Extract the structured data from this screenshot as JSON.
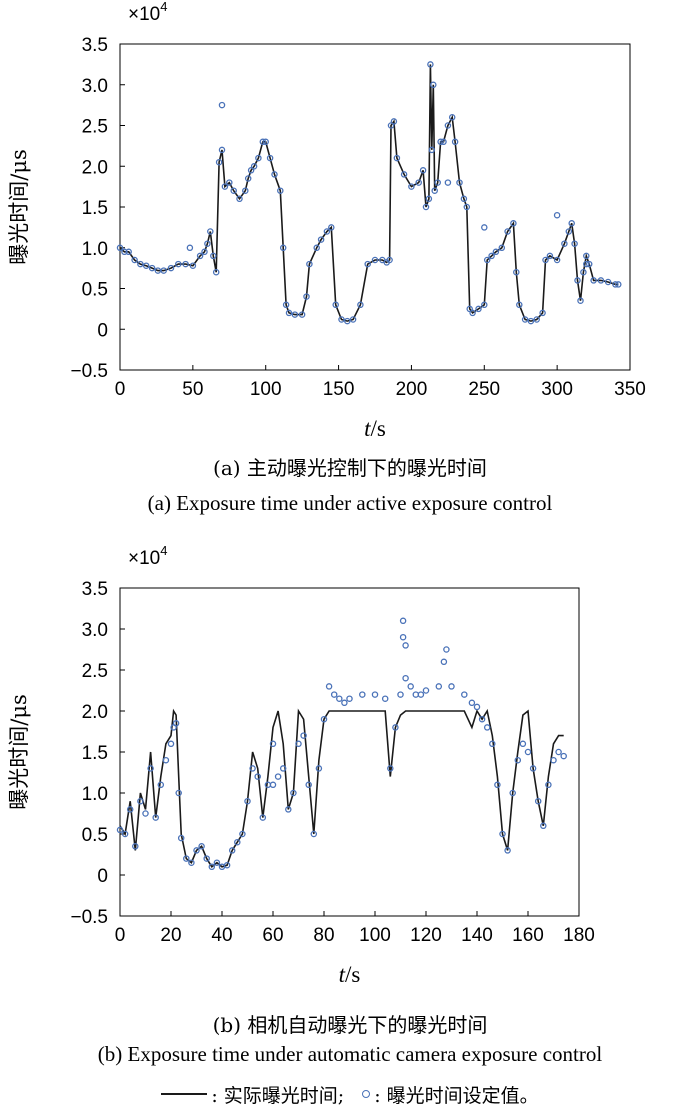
{
  "captions": [
    {
      "cn": "(a) 主动曝光控制下的曝光时间",
      "en": "(a) Exposure time under active exposure control"
    },
    {
      "cn": "(b) 相机自动曝光下的曝光时间",
      "en": "(b) Exposure time under automatic camera exposure control"
    }
  ],
  "legend": {
    "line_label": ": 实际曝光时间;",
    "marker_label": ": 曝光时间设定值。"
  },
  "colors": {
    "line": "#1a1a1a",
    "marker": "#4a72b8"
  },
  "chart_data": [
    {
      "type": "line",
      "xlabel_italic": "t",
      "xlabel_unit": "/s",
      "ylabel": "曝光时间/μs",
      "multiplier_label": "×10",
      "multiplier_exp": "4",
      "xlim": [
        0,
        350
      ],
      "ylim": [
        -0.5,
        3.5
      ],
      "xticks": [
        "0",
        "50",
        "100",
        "150",
        "200",
        "250",
        "300",
        "350"
      ],
      "yticks": [
        "−0.5",
        "0",
        "0.5",
        "1.0",
        "1.5",
        "2.0",
        "2.5",
        "3.0",
        "3.5"
      ],
      "grid": false,
      "series": [
        {
          "role": "actual",
          "x": [
            0,
            3,
            6,
            10,
            14,
            18,
            22,
            26,
            30,
            35,
            40,
            45,
            50,
            55,
            58,
            60,
            62,
            64,
            66,
            68,
            70,
            72,
            75,
            78,
            82,
            86,
            88,
            90,
            92,
            95,
            98,
            100,
            103,
            106,
            110,
            112,
            114,
            116,
            120,
            125,
            128,
            130,
            135,
            138,
            142,
            145,
            148,
            152,
            156,
            160,
            165,
            170,
            175,
            180,
            183,
            185,
            186,
            188,
            190,
            195,
            200,
            205,
            208,
            210,
            212,
            213,
            214,
            215,
            216,
            218,
            220,
            222,
            225,
            228,
            230,
            233,
            236,
            238,
            240,
            242,
            246,
            250,
            252,
            255,
            258,
            262,
            266,
            270,
            272,
            274,
            278,
            282,
            286,
            290,
            292,
            295,
            300,
            305,
            308,
            310,
            312,
            314,
            316,
            318,
            320,
            322,
            325,
            330,
            335,
            340,
            342
          ],
          "y": [
            1.0,
            0.95,
            0.95,
            0.85,
            0.8,
            0.78,
            0.75,
            0.72,
            0.72,
            0.75,
            0.8,
            0.8,
            0.78,
            0.9,
            0.95,
            1.05,
            1.2,
            0.9,
            0.7,
            2.05,
            2.2,
            1.75,
            1.8,
            1.7,
            1.6,
            1.7,
            1.85,
            1.95,
            2.0,
            2.1,
            2.3,
            2.3,
            2.1,
            1.9,
            1.7,
            1.0,
            0.3,
            0.2,
            0.18,
            0.18,
            0.4,
            0.8,
            1.0,
            1.1,
            1.2,
            1.25,
            0.3,
            0.12,
            0.1,
            0.12,
            0.3,
            0.8,
            0.85,
            0.85,
            0.82,
            0.85,
            2.5,
            2.55,
            2.1,
            1.9,
            1.75,
            1.8,
            1.95,
            1.5,
            1.6,
            3.25,
            2.2,
            3.0,
            1.7,
            1.8,
            2.3,
            2.3,
            2.5,
            2.6,
            2.3,
            1.8,
            1.6,
            1.5,
            0.25,
            0.2,
            0.25,
            0.3,
            0.85,
            0.9,
            0.95,
            1.0,
            1.2,
            1.3,
            0.7,
            0.3,
            0.12,
            0.1,
            0.12,
            0.2,
            0.85,
            0.9,
            0.85,
            1.05,
            1.2,
            1.3,
            1.05,
            0.6,
            0.35,
            0.7,
            0.9,
            0.8,
            0.6,
            0.6,
            0.58,
            0.55,
            0.55
          ]
        },
        {
          "role": "setpoint",
          "x": [
            0,
            3,
            6,
            10,
            14,
            18,
            22,
            26,
            30,
            35,
            40,
            45,
            50,
            55,
            58,
            60,
            62,
            64,
            66,
            68,
            70,
            72,
            75,
            78,
            82,
            86,
            88,
            90,
            92,
            95,
            98,
            100,
            103,
            106,
            110,
            112,
            114,
            116,
            120,
            125,
            128,
            130,
            135,
            138,
            142,
            145,
            148,
            152,
            156,
            160,
            165,
            170,
            175,
            180,
            183,
            185,
            186,
            188,
            190,
            195,
            200,
            205,
            208,
            210,
            212,
            213,
            214,
            215,
            216,
            218,
            220,
            222,
            225,
            228,
            230,
            233,
            236,
            238,
            240,
            242,
            246,
            250,
            252,
            255,
            258,
            262,
            266,
            270,
            272,
            274,
            278,
            282,
            286,
            290,
            292,
            295,
            300,
            305,
            308,
            310,
            312,
            314,
            316,
            318,
            320,
            322,
            325,
            330,
            335,
            340,
            342,
            48,
            70,
            225,
            250,
            300,
            320
          ],
          "y": [
            1.0,
            0.95,
            0.95,
            0.85,
            0.8,
            0.78,
            0.75,
            0.72,
            0.72,
            0.75,
            0.8,
            0.8,
            0.78,
            0.9,
            0.95,
            1.05,
            1.2,
            0.9,
            0.7,
            2.05,
            2.2,
            1.75,
            1.8,
            1.7,
            1.6,
            1.7,
            1.85,
            1.95,
            2.0,
            2.1,
            2.3,
            2.3,
            2.1,
            1.9,
            1.7,
            1.0,
            0.3,
            0.2,
            0.18,
            0.18,
            0.4,
            0.8,
            1.0,
            1.1,
            1.2,
            1.25,
            0.3,
            0.12,
            0.1,
            0.12,
            0.3,
            0.8,
            0.85,
            0.85,
            0.82,
            0.85,
            2.5,
            2.55,
            2.1,
            1.9,
            1.75,
            1.8,
            1.95,
            1.5,
            1.6,
            3.25,
            2.2,
            3.0,
            1.7,
            1.8,
            2.3,
            2.3,
            2.5,
            2.6,
            2.3,
            1.8,
            1.6,
            1.5,
            0.25,
            0.2,
            0.25,
            0.3,
            0.85,
            0.9,
            0.95,
            1.0,
            1.2,
            1.3,
            0.7,
            0.3,
            0.12,
            0.1,
            0.12,
            0.2,
            0.85,
            0.9,
            0.85,
            1.05,
            1.2,
            1.3,
            1.05,
            0.6,
            0.35,
            0.7,
            0.9,
            0.8,
            0.6,
            0.6,
            0.58,
            0.55,
            0.55,
            1.0,
            2.75,
            1.8,
            1.25,
            1.4,
            0.8
          ]
        }
      ]
    },
    {
      "type": "line",
      "xlabel_italic": "t",
      "xlabel_unit": "/s",
      "ylabel": "曝光时间/μs",
      "multiplier_label": "×10",
      "multiplier_exp": "4",
      "xlim": [
        0,
        180
      ],
      "ylim": [
        -0.5,
        3.5
      ],
      "xticks": [
        "0",
        "20",
        "40",
        "60",
        "80",
        "100",
        "120",
        "140",
        "160",
        "180"
      ],
      "yticks": [
        "−0.5",
        "0",
        "0.5",
        "1.0",
        "1.5",
        "2.0",
        "2.5",
        "3.0",
        "3.5"
      ],
      "grid": false,
      "series": [
        {
          "role": "actual",
          "x": [
            0,
            2,
            4,
            6,
            8,
            10,
            12,
            14,
            16,
            18,
            20,
            21,
            22,
            23,
            24,
            26,
            28,
            30,
            32,
            34,
            36,
            38,
            40,
            42,
            44,
            46,
            48,
            50,
            52,
            54,
            56,
            58,
            60,
            62,
            64,
            66,
            68,
            70,
            72,
            74,
            76,
            78,
            80,
            82,
            84,
            86,
            88,
            90,
            95,
            100,
            104,
            106,
            108,
            110,
            112,
            114,
            116,
            118,
            120,
            125,
            130,
            135,
            138,
            140,
            142,
            144,
            146,
            148,
            150,
            152,
            154,
            156,
            158,
            160,
            162,
            164,
            166,
            168,
            170,
            172,
            174
          ],
          "y": [
            0.6,
            0.5,
            0.9,
            0.3,
            1.0,
            0.8,
            1.5,
            0.7,
            1.2,
            1.6,
            1.7,
            2.0,
            1.95,
            1.2,
            0.5,
            0.2,
            0.15,
            0.3,
            0.35,
            0.2,
            0.1,
            0.15,
            0.1,
            0.12,
            0.3,
            0.4,
            0.5,
            0.9,
            1.5,
            1.3,
            0.7,
            1.2,
            1.8,
            2.0,
            1.6,
            0.8,
            1.0,
            2.0,
            1.9,
            1.2,
            0.5,
            1.4,
            1.9,
            2.0,
            2.0,
            2.0,
            2.0,
            2.0,
            2.0,
            2.0,
            2.0,
            1.2,
            1.8,
            1.95,
            2.0,
            2.0,
            2.0,
            2.0,
            2.0,
            2.0,
            2.0,
            2.0,
            1.8,
            2.0,
            1.9,
            2.0,
            1.7,
            1.2,
            0.5,
            0.3,
            1.0,
            1.5,
            1.95,
            2.0,
            1.3,
            0.9,
            0.6,
            1.2,
            1.6,
            1.7,
            1.7
          ]
        },
        {
          "role": "setpoint",
          "x": [
            0,
            2,
            4,
            6,
            8,
            10,
            12,
            14,
            16,
            18,
            20,
            21,
            22,
            23,
            24,
            26,
            28,
            30,
            32,
            34,
            36,
            38,
            40,
            42,
            44,
            46,
            48,
            50,
            52,
            54,
            56,
            58,
            60,
            62,
            64,
            66,
            68,
            70,
            72,
            74,
            76,
            78,
            80,
            82,
            84,
            86,
            88,
            90,
            95,
            100,
            104,
            106,
            108,
            110,
            111,
            112,
            114,
            116,
            118,
            120,
            125,
            127,
            130,
            135,
            138,
            140,
            142,
            144,
            146,
            148,
            150,
            152,
            154,
            156,
            158,
            160,
            162,
            164,
            166,
            168,
            170,
            172,
            174,
            111,
            112,
            128,
            60
          ],
          "y": [
            0.55,
            0.5,
            0.8,
            0.35,
            0.9,
            0.75,
            1.3,
            0.7,
            1.1,
            1.4,
            1.6,
            1.8,
            1.85,
            1.0,
            0.45,
            0.2,
            0.15,
            0.3,
            0.35,
            0.2,
            0.1,
            0.15,
            0.1,
            0.12,
            0.3,
            0.4,
            0.5,
            0.9,
            1.3,
            1.2,
            0.7,
            1.1,
            1.6,
            1.2,
            1.3,
            0.8,
            1.0,
            1.6,
            1.7,
            1.1,
            0.5,
            1.3,
            1.9,
            2.3,
            2.2,
            2.15,
            2.1,
            2.15,
            2.2,
            2.2,
            2.15,
            1.3,
            1.8,
            2.2,
            2.9,
            2.4,
            2.3,
            2.2,
            2.2,
            2.25,
            2.3,
            2.6,
            2.3,
            2.2,
            2.1,
            2.05,
            1.9,
            1.8,
            1.6,
            1.1,
            0.5,
            0.3,
            1.0,
            1.4,
            1.6,
            1.5,
            1.3,
            0.9,
            0.6,
            1.1,
            1.4,
            1.5,
            1.45,
            3.1,
            2.8,
            2.75,
            1.1
          ]
        }
      ]
    }
  ]
}
